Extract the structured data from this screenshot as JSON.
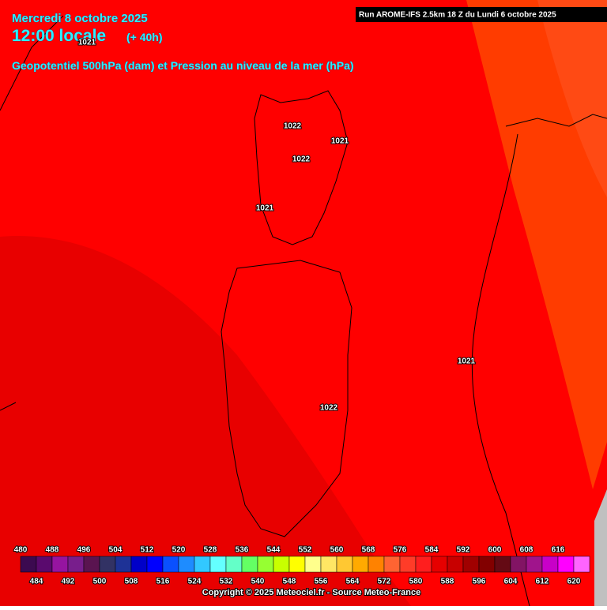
{
  "header": {
    "date": "Mercredi 8 octobre 2025",
    "time": "12:00 locale",
    "lead": "(+ 40h)",
    "subtitle": "Geopotentiel 500hPa (dam) et Pression au niveau de la mer (hPa)",
    "run": "Run AROME-IFS 2.5km 18 Z du Lundi 6 octobre 2025"
  },
  "map": {
    "isobar_labels": [
      1021,
      1022,
      1021,
      1022,
      1021,
      1021,
      1022
    ]
  },
  "colorbar": {
    "values": [
      480,
      484,
      488,
      492,
      496,
      500,
      504,
      508,
      512,
      516,
      520,
      524,
      528,
      532,
      536,
      540,
      544,
      548,
      552,
      556,
      560,
      564,
      568,
      572,
      576,
      580,
      584,
      588,
      592,
      596,
      600,
      604,
      608,
      612,
      616,
      620
    ],
    "colors": [
      "#3c0a50",
      "#5a0a6e",
      "#9614a0",
      "#781e8c",
      "#5a1450",
      "#323264",
      "#1e3296",
      "#0000c8",
      "#0000ff",
      "#0a50ff",
      "#1e8cff",
      "#32c8ff",
      "#64ffff",
      "#64ffc8",
      "#64ff64",
      "#96ff32",
      "#c8ff00",
      "#ffff00",
      "#ffff8c",
      "#ffe664",
      "#ffc832",
      "#ffaa00",
      "#ff8200",
      "#ff6432",
      "#ff3c28",
      "#ff1e1e",
      "#e60000",
      "#c80000",
      "#a00000",
      "#820000",
      "#640a14",
      "#821464",
      "#a0148c",
      "#c800c8",
      "#ff00ff",
      "#ff64ff"
    ]
  },
  "footer": {
    "copyright": "Copyright © 2025 Meteociel.fr - Source Meteo-France"
  }
}
